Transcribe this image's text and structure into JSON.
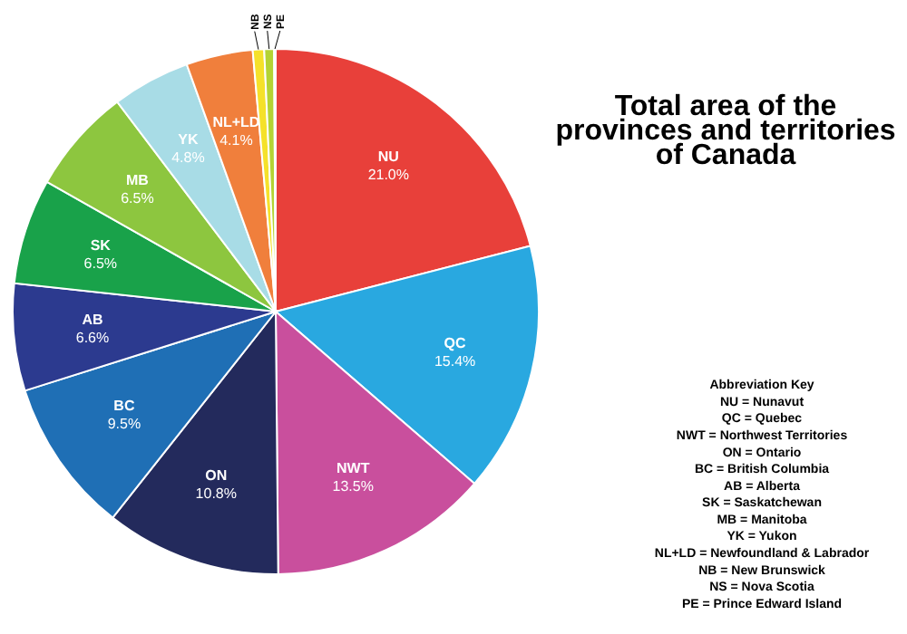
{
  "chart_data": {
    "type": "pie",
    "title": "Total area of the provinces and territories of Canada",
    "categories": [
      "NU",
      "QC",
      "NWT",
      "ON",
      "BC",
      "AB",
      "SK",
      "MB",
      "YK",
      "NL+LD",
      "NB",
      "NS",
      "PE"
    ],
    "values": [
      21.0,
      15.4,
      13.5,
      10.8,
      9.5,
      6.6,
      6.5,
      6.5,
      4.8,
      4.1,
      0.7,
      0.6,
      0.1
    ],
    "value_labels": [
      "21.0%",
      "15.4%",
      "13.5%",
      "10.8%",
      "9.5%",
      "6.6%",
      "6.5%",
      "6.5%",
      "4.8%",
      "4.1%",
      null,
      null,
      null
    ],
    "colors": [
      "#e8403a",
      "#29a8e0",
      "#c94f9d",
      "#232a5c",
      "#1f6fb5",
      "#2c3a8f",
      "#19a24a",
      "#8dc63f",
      "#a8dce6",
      "#f07f3c",
      "#f5e12a",
      "#b3d334",
      "#7b4e9e"
    ],
    "annotations": [
      "Abbreviation Key",
      "NU = Nunavut",
      "QC = Quebec",
      "NWT = Northwest Territories",
      "ON = Ontario",
      "BC = British Columbia",
      "AB = Alberta",
      "SK = Saskatchewan",
      "MB = Manitoba",
      "YK = Yukon",
      "NL+LD = Newfoundland & Labrador",
      "NB = New Brunswick",
      "NS = Nova Scotia",
      "PE = Prince Edward Island"
    ]
  }
}
